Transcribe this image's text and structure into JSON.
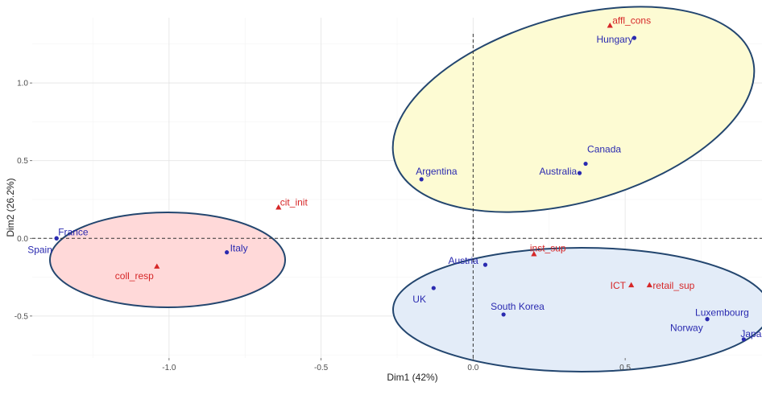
{
  "chart_data": {
    "type": "scatter",
    "title": "",
    "xlabel": "Dim1 (42%)",
    "ylabel": "Dim2 (26.2%)",
    "xlim": [
      -1.45,
      0.95
    ],
    "ylim": [
      -0.77,
      1.42
    ],
    "grid": true,
    "x_ticks": [
      -1.0,
      -0.5,
      0.0,
      0.5
    ],
    "x_tick_labels": [
      "-1.0",
      "-0.5",
      "0.0",
      "0.5"
    ],
    "y_ticks": [
      -0.5,
      0.0,
      0.5,
      1.0
    ],
    "y_tick_labels": [
      "-0.5",
      "0.0",
      "0.5",
      "1.0"
    ],
    "reference_lines": {
      "x": 0,
      "y": 0,
      "style": "dashed"
    },
    "colors": {
      "individual": "#2a2ab0",
      "variable": "#d62728",
      "cluster_red": "#ffd9d9",
      "cluster_yellow": "#fdfbd3",
      "cluster_blue": "#e3ecf8",
      "ellipse_stroke": "#23466f"
    },
    "series": [
      {
        "name": "",
        "marker": "circle",
        "color": "#2a2ab0",
        "points": [
          {
            "label": "France",
            "x": -1.37,
            "y": 0.0
          },
          {
            "label": "Spain",
            "x": -1.37,
            "y": 0.0
          },
          {
            "label": "Italy",
            "x": -0.81,
            "y": -0.09
          },
          {
            "label": "Argentina",
            "x": -0.17,
            "y": 0.38
          },
          {
            "label": "Australia",
            "x": 0.35,
            "y": 0.42
          },
          {
            "label": "Canada",
            "x": 0.37,
            "y": 0.48
          },
          {
            "label": "Hungary",
            "x": 0.53,
            "y": 1.29
          },
          {
            "label": "Austria",
            "x": 0.04,
            "y": -0.17
          },
          {
            "label": "UK",
            "x": -0.13,
            "y": -0.32
          },
          {
            "label": "South Korea",
            "x": 0.1,
            "y": -0.49
          },
          {
            "label": "Luxembourg",
            "x": 0.77,
            "y": -0.52
          },
          {
            "label": "Norway",
            "x": 0.77,
            "y": -0.52
          },
          {
            "label": "Japan",
            "x": 0.89,
            "y": -0.65
          }
        ]
      },
      {
        "name": "",
        "marker": "triangle",
        "color": "#d62728",
        "points": [
          {
            "label": "cit_init",
            "x": -0.64,
            "y": 0.2
          },
          {
            "label": "coll_resp",
            "x": -1.04,
            "y": -0.18
          },
          {
            "label": "affl_cons",
            "x": 0.45,
            "y": 1.37
          },
          {
            "label": "inst_sup",
            "x": 0.2,
            "y": -0.1
          },
          {
            "label": "ICT",
            "x": 0.52,
            "y": -0.3
          },
          {
            "label": "retail_sup",
            "x": 0.58,
            "y": -0.3
          }
        ]
      }
    ]
  }
}
